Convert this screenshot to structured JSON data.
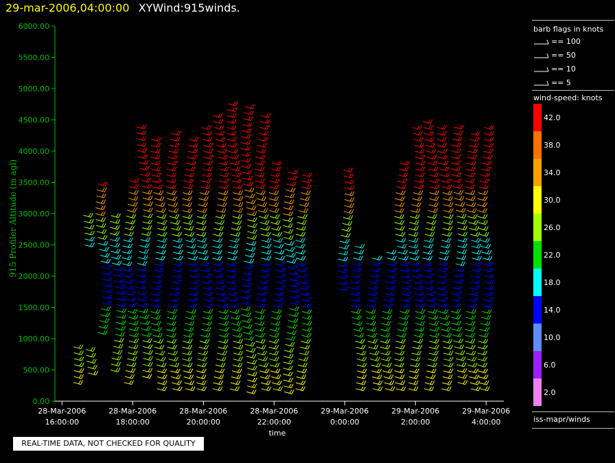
{
  "header": {
    "datetime": "29-mar-2006,04:00:00",
    "title": "XYWind:915winds."
  },
  "notice": "REAL-TIME DATA, NOT CHECKED FOR QUALITY",
  "legend": {
    "barb_title": "barb flags in knots",
    "barbs": [
      {
        "label": "== 100",
        "value": 100
      },
      {
        "label": "== 50",
        "value": 50
      },
      {
        "label": "== 10",
        "value": 10
      },
      {
        "label": "== 5",
        "value": 5
      }
    ],
    "speed_title": "wind-speed: knots",
    "colors": [
      {
        "label": "42.0",
        "color": "#ff0000"
      },
      {
        "label": "38.0",
        "color": "#ff7000"
      },
      {
        "label": "34.0",
        "color": "#ffa000"
      },
      {
        "label": "30.0",
        "color": "#ffff00"
      },
      {
        "label": "26.0",
        "color": "#a0ff00"
      },
      {
        "label": "22.0",
        "color": "#00e000"
      },
      {
        "label": "18.0",
        "color": "#00ffff"
      },
      {
        "label": "14.0",
        "color": "#0000ff"
      },
      {
        "label": "10.0",
        "color": "#5e8cff"
      },
      {
        "label": "6.0",
        "color": "#9a20ff"
      },
      {
        "label": "2.0",
        "color": "#f080f0"
      }
    ],
    "source": "iss-mapr/winds"
  },
  "chart_data": {
    "type": "scatter",
    "subtype": "wind-barb time-height",
    "ylabel": "915 Profiler Altitude (m agl)",
    "xlabel": "time",
    "ylim": [
      0,
      6000
    ],
    "yticks": [
      "0.00",
      "500.00",
      "1000.00",
      "1500.00",
      "2000.00",
      "2500.00",
      "3000.00",
      "3500.00",
      "4000.00",
      "4500.00",
      "5000.00",
      "5500.00",
      "6000.00"
    ],
    "xlim_hours": [
      15.8,
      28.5
    ],
    "xticks": [
      {
        "h": 16,
        "line1": "28-Mar-2006",
        "line2": "16:00:00"
      },
      {
        "h": 18,
        "line1": "28-Mar-2006",
        "line2": "18:00:00"
      },
      {
        "h": 20,
        "line1": "28-Mar-2006",
        "line2": "20:00:00"
      },
      {
        "h": 22,
        "line1": "28-Mar-2006",
        "line2": "22:00:00"
      },
      {
        "h": 24,
        "line1": "29-Mar-2006",
        "line2": "0:00:00"
      },
      {
        "h": 26,
        "line1": "29-Mar-2006",
        "line2": "2:00:00"
      },
      {
        "h": 28,
        "line1": "29-Mar-2006",
        "line2": "4:00:00"
      }
    ],
    "profiles": [
      {
        "h": 16.25,
        "bottom": 300,
        "top": 900
      },
      {
        "h": 16.55,
        "bottom": 2500,
        "top": 3000
      },
      {
        "h": 16.75,
        "bottom": 450,
        "top": 900
      },
      {
        "h": 17.05,
        "bottom": 1100,
        "top": 3500
      },
      {
        "h": 17.45,
        "bottom": 500,
        "top": 3000
      },
      {
        "h": 17.8,
        "bottom": 300,
        "top": 3600
      },
      {
        "h": 18.2,
        "bottom": 400,
        "top": 4400
      },
      {
        "h": 18.6,
        "bottom": 200,
        "top": 4200
      },
      {
        "h": 19.05,
        "bottom": 200,
        "top": 4300
      },
      {
        "h": 19.5,
        "bottom": 200,
        "top": 4200
      },
      {
        "h": 19.9,
        "bottom": 200,
        "top": 4400
      },
      {
        "h": 20.35,
        "bottom": 200,
        "top": 4600
      },
      {
        "h": 20.75,
        "bottom": 200,
        "top": 4850
      },
      {
        "h": 21.15,
        "bottom": 150,
        "top": 4750
      },
      {
        "h": 21.55,
        "bottom": 200,
        "top": 4650
      },
      {
        "h": 21.95,
        "bottom": 200,
        "top": 3900
      },
      {
        "h": 22.35,
        "bottom": 150,
        "top": 3750
      },
      {
        "h": 22.7,
        "bottom": 200,
        "top": 3700
      },
      {
        "h": 23.9,
        "bottom": 1800,
        "top": 3700
      },
      {
        "h": 24.25,
        "bottom": 200,
        "top": 2500
      },
      {
        "h": 24.7,
        "bottom": 200,
        "top": 2300
      },
      {
        "h": 25.1,
        "bottom": 200,
        "top": 2400
      },
      {
        "h": 25.5,
        "bottom": 200,
        "top": 3900
      },
      {
        "h": 25.9,
        "bottom": 200,
        "top": 4400
      },
      {
        "h": 26.3,
        "bottom": 200,
        "top": 4500
      },
      {
        "h": 26.7,
        "bottom": 200,
        "top": 4400
      },
      {
        "h": 27.1,
        "bottom": 300,
        "top": 4400
      },
      {
        "h": 27.5,
        "bottom": 200,
        "top": 4300
      },
      {
        "h": 27.85,
        "bottom": 200,
        "top": 4400
      }
    ],
    "gap": {
      "from_h": 22.9,
      "to_h": 23.75
    }
  }
}
